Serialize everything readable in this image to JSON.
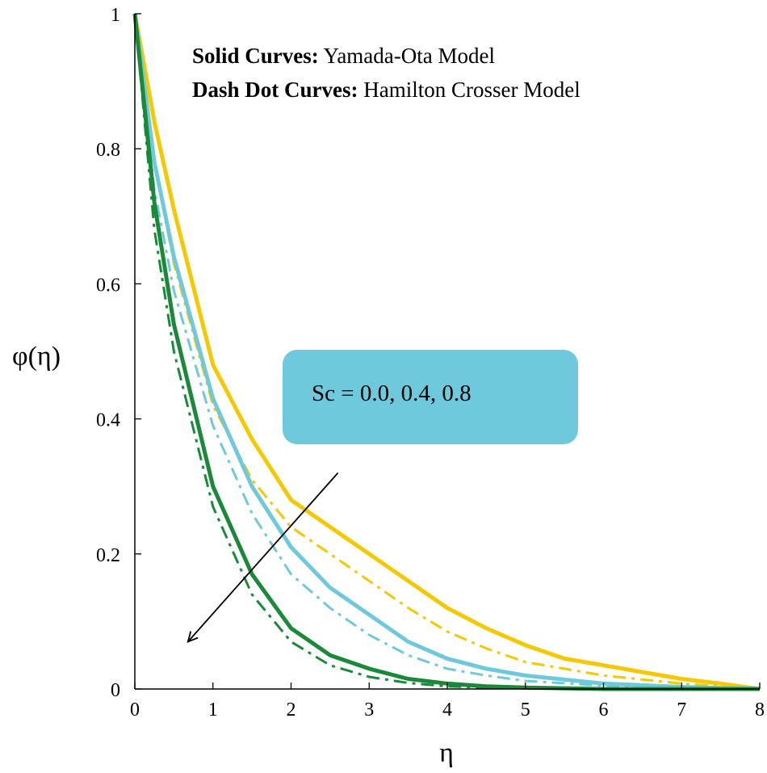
{
  "chart_data": {
    "type": "line",
    "xlabel": "η",
    "ylabel": "φ(η)",
    "xlim": [
      0,
      8
    ],
    "ylim": [
      0,
      1
    ],
    "xticks": [
      "0",
      "1",
      "2",
      "3",
      "4",
      "5",
      "6",
      "7",
      "8"
    ],
    "yticks": [
      "0",
      "0.2",
      "0.4",
      "0.6",
      "0.8",
      "1"
    ],
    "grid": false,
    "notes": {
      "solid_bold": "Solid Curves:",
      "solid_text": " Yamada-Ota Model",
      "dash_bold": "Dash Dot Curves:",
      "dash_text": " Hamilton Crosser Model"
    },
    "annotation": {
      "label": "Sc = 0.0, 0.4, 0.8",
      "box_color": "#6ec9dc"
    },
    "arrow": {
      "from": [
        2.6,
        0.32
      ],
      "to": [
        0.68,
        0.07
      ]
    },
    "series": [
      {
        "style": "solid",
        "color": "#f5c800",
        "x": [
          0,
          0.25,
          0.5,
          1,
          1.5,
          2,
          2.5,
          3,
          3.5,
          4,
          4.5,
          5,
          5.5,
          6,
          6.5,
          7,
          7.5,
          8
        ],
        "y": [
          1,
          0.84,
          0.71,
          0.48,
          0.37,
          0.28,
          0.24,
          0.2,
          0.16,
          0.12,
          0.09,
          0.065,
          0.045,
          0.035,
          0.025,
          0.015,
          0.008,
          0
        ]
      },
      {
        "style": "solid",
        "color": "#6ec9dc",
        "x": [
          0,
          0.25,
          0.5,
          1,
          1.5,
          2,
          2.5,
          3,
          3.5,
          4,
          4.5,
          5,
          6,
          7,
          8
        ],
        "y": [
          1,
          0.78,
          0.64,
          0.43,
          0.3,
          0.21,
          0.15,
          0.11,
          0.07,
          0.045,
          0.03,
          0.02,
          0.008,
          0.003,
          0
        ]
      },
      {
        "style": "solid",
        "color": "#1a8a3a",
        "x": [
          0,
          0.25,
          0.5,
          1,
          1.5,
          2,
          2.5,
          3,
          3.5,
          4,
          4.5,
          5,
          6,
          7,
          8
        ],
        "y": [
          1,
          0.72,
          0.54,
          0.3,
          0.17,
          0.09,
          0.05,
          0.03,
          0.015,
          0.008,
          0.004,
          0.002,
          0,
          0,
          0
        ]
      },
      {
        "style": "dashdot",
        "color": "#f5c800",
        "x": [
          0,
          0.25,
          0.5,
          1,
          1.5,
          2,
          2.5,
          3,
          3.5,
          4,
          4.5,
          5,
          5.5,
          6,
          7,
          8
        ],
        "y": [
          1,
          0.78,
          0.63,
          0.42,
          0.31,
          0.24,
          0.2,
          0.16,
          0.12,
          0.085,
          0.06,
          0.04,
          0.03,
          0.02,
          0.008,
          0
        ]
      },
      {
        "style": "dashdot",
        "color": "#6ec9dc",
        "x": [
          0,
          0.25,
          0.5,
          1,
          1.5,
          2,
          2.5,
          3,
          3.5,
          4,
          4.5,
          5,
          6,
          7,
          8
        ],
        "y": [
          1,
          0.74,
          0.59,
          0.39,
          0.26,
          0.17,
          0.12,
          0.08,
          0.05,
          0.03,
          0.02,
          0.012,
          0.005,
          0.002,
          0
        ]
      },
      {
        "style": "dashdot",
        "color": "#1a8a3a",
        "x": [
          0,
          0.25,
          0.5,
          1,
          1.5,
          2,
          2.5,
          3,
          3.5,
          4,
          4.5,
          5,
          6,
          7,
          8
        ],
        "y": [
          1,
          0.68,
          0.5,
          0.27,
          0.14,
          0.07,
          0.035,
          0.018,
          0.009,
          0.004,
          0.002,
          0.001,
          0,
          0,
          0
        ]
      }
    ]
  }
}
